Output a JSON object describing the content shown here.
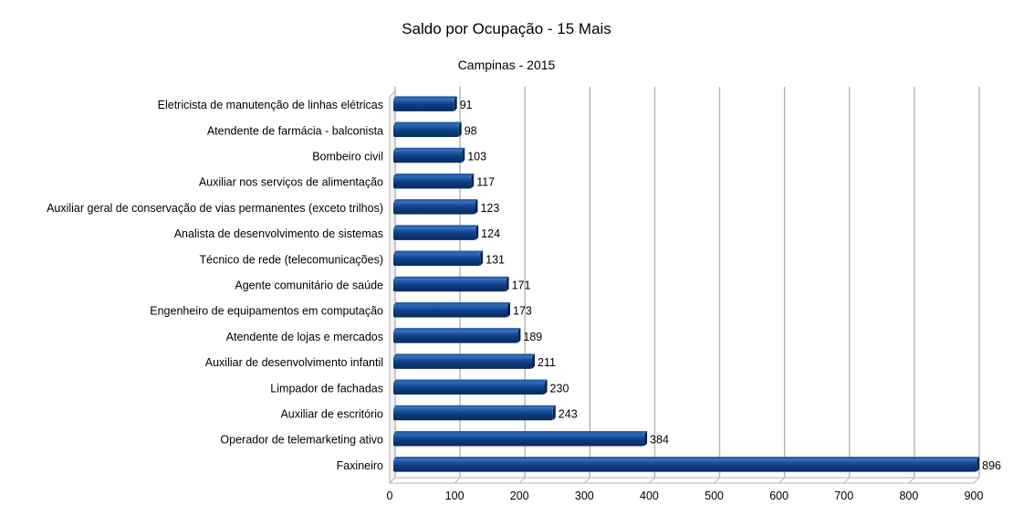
{
  "chart_data": {
    "type": "bar",
    "orientation": "horizontal",
    "title": "Saldo por Ocupação - 15 Mais",
    "subtitle": "Campinas - 2015",
    "categories": [
      "Eletricista de manutenção de linhas elétricas",
      "Atendente de farmácia - balconista",
      "Bombeiro civil",
      "Auxiliar nos serviços de alimentação",
      "Auxiliar geral de conservação de vias permanentes (exceto trilhos)",
      "Analista de desenvolvimento de sistemas",
      "Técnico de rede (telecomunicações)",
      "Agente comunitário de saúde",
      "Engenheiro de equipamentos em computação",
      "Atendente de lojas e mercados",
      "Auxiliar de desenvolvimento infantil",
      "Limpador de fachadas",
      "Auxiliar de escritório",
      "Operador de telemarketing ativo",
      "Faxineiro"
    ],
    "values": [
      91,
      98,
      103,
      117,
      123,
      124,
      131,
      171,
      173,
      189,
      211,
      230,
      243,
      384,
      896
    ],
    "xlim": [
      0,
      900
    ],
    "xticks": [
      0,
      100,
      200,
      300,
      400,
      500,
      600,
      700,
      800,
      900
    ],
    "grid": true,
    "data_labels": true,
    "bar_color": "#0d3f86",
    "bar_highlight": "#2e6cc0",
    "grid_color": "#b3b3b3"
  }
}
